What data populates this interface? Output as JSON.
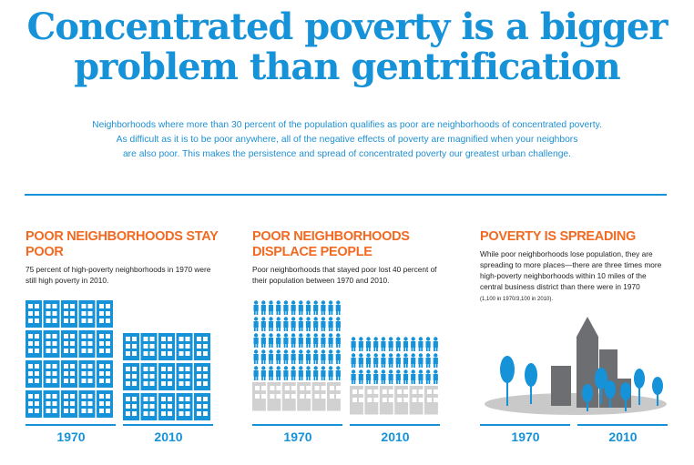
{
  "title_line1": "Concentrated poverty is a bigger",
  "title_line2": "problem than gentrification",
  "intro": {
    "line1": "Neighborhoods where more than 30 percent of the population qualifies as poor are neighborhoods of concentrated poverty.",
    "line2": "As difficult as it is to be poor anywhere, all of the negative effects of poverty are magnified when your neighbors",
    "line3": "are also poor. This makes the persistence and spread of concentrated poverty our greatest urban challenge."
  },
  "colors": {
    "blue": "#1592d8",
    "orange": "#f26a22",
    "gray": "#c9c9c9",
    "dark_gray": "#6d6e71"
  },
  "sections": [
    {
      "heading": "POOR NEIGHBORHOODS STAY POOR",
      "text": "75 percent of high-poverty neighborhoods in 1970 were still high poverty in 2010.",
      "year_a": "1970",
      "year_b": "2010"
    },
    {
      "heading_line1": "POOR NEIGHBORHOODS",
      "heading_line2": "DISPLACE PEOPLE",
      "text": "Poor neighborhoods that stayed poor lost 40 percent of their population between 1970 and 2010.",
      "year_a": "1970",
      "year_b": "2010"
    },
    {
      "heading": "POVERTY IS SPREADING",
      "text": "While poor neighborhoods lose population, they are spreading to more places—there are three times more high-poverty neighborhoods within 10 miles of the central business district than there were in 1970",
      "note": "(1,100 in 1970/3,100 in 2010).",
      "year_a": "1970",
      "year_b": "2010"
    }
  ]
}
